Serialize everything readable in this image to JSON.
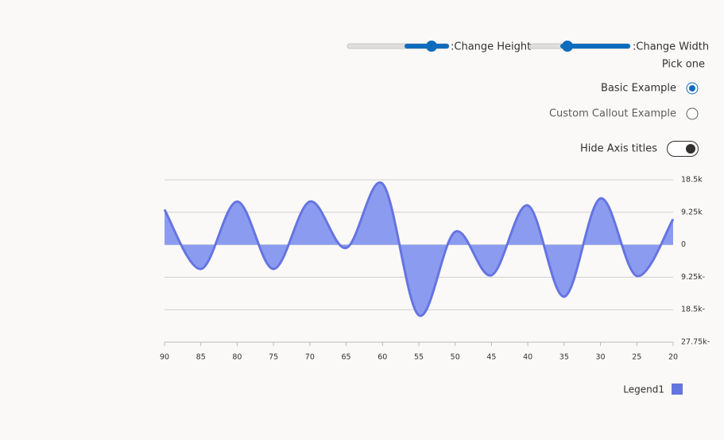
{
  "controls": {
    "height_slider_label": ":Change Height",
    "width_slider_label": ":Change Width",
    "pick_label": "Pick one",
    "options": [
      "Basic Example",
      "Custom Callout Example"
    ],
    "toggle_label": "Hide Axis titles"
  },
  "chart_data": {
    "type": "area",
    "x": [
      90,
      85,
      80,
      75,
      70,
      65,
      60,
      55,
      50,
      45,
      40,
      35,
      30,
      25,
      20
    ],
    "series": [
      {
        "name": "Legend1",
        "color": "#6674e0",
        "fill": "#8b9cf0",
        "values": [
          10000,
          -6900,
          12300,
          -6900,
          12300,
          -900,
          17400,
          -20100,
          3700,
          -8700,
          11200,
          -14800,
          13200,
          -8900,
          7300
        ]
      }
    ],
    "xlim": [
      90,
      20
    ],
    "xticks": [
      90,
      85,
      80,
      75,
      70,
      65,
      60,
      55,
      50,
      45,
      40,
      35,
      30,
      25,
      20
    ],
    "ylim": [
      -27750,
      18500
    ],
    "yticks": [
      {
        "value": 18500,
        "label": "18.5k"
      },
      {
        "value": 9250,
        "label": "9.25k"
      },
      0,
      {
        "value": -9250,
        "label": "9.25k-"
      },
      {
        "value": -18500,
        "label": "18.5k-"
      },
      {
        "value": -27750,
        "label": "27.75k-"
      }
    ],
    "grid": true
  }
}
